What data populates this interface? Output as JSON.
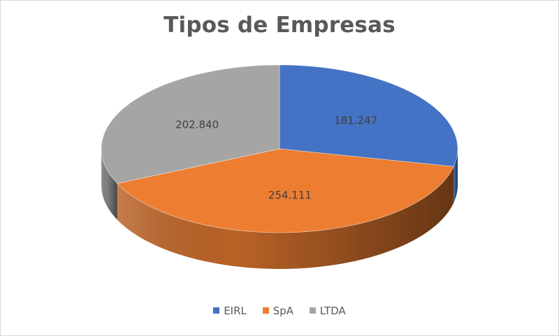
{
  "chart_data": {
    "type": "pie",
    "style": "3d",
    "title": "Tipos de Empresas",
    "slices": [
      {
        "label": "EIRL",
        "value": 181247,
        "display": "181.247",
        "color": "#4472c4"
      },
      {
        "label": "SpA",
        "value": 254111,
        "display": "254.111",
        "color": "#ed7d31"
      },
      {
        "label": "LTDA",
        "value": 202840,
        "display": "202.840",
        "color": "#a5a5a5"
      }
    ],
    "legend_position": "bottom"
  }
}
